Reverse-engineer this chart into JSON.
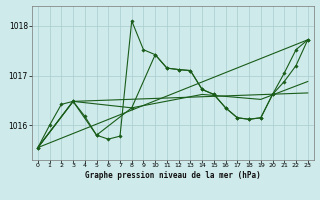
{
  "title": "Graphe pression niveau de la mer (hPa)",
  "background_color": "#ceeaea",
  "grid_color": "#aacccc",
  "line_color": "#1a5c1a",
  "xlim": [
    -0.5,
    23.5
  ],
  "ylim": [
    1015.3,
    1018.4
  ],
  "yticks": [
    1016,
    1017,
    1018
  ],
  "xticks": [
    0,
    1,
    2,
    3,
    4,
    5,
    6,
    7,
    8,
    9,
    10,
    11,
    12,
    13,
    14,
    15,
    16,
    17,
    18,
    19,
    20,
    21,
    22,
    23
  ],
  "series": [
    {
      "x": [
        0,
        1,
        2,
        3,
        4,
        5,
        6,
        7,
        8,
        9,
        10,
        11,
        12,
        13,
        14,
        15,
        16,
        17,
        18,
        19,
        20,
        21,
        22,
        23
      ],
      "y": [
        1015.55,
        1016.0,
        1016.42,
        1016.48,
        1016.18,
        1015.8,
        1015.72,
        1015.78,
        1018.1,
        1017.52,
        1017.42,
        1017.15,
        1017.12,
        1017.1,
        1016.72,
        1016.62,
        1016.35,
        1016.15,
        1016.12,
        1016.15,
        1016.62,
        1017.05,
        1017.52,
        1017.72
      ],
      "has_markers": true
    },
    {
      "x": [
        0,
        3,
        23
      ],
      "y": [
        1015.55,
        1016.48,
        1016.65
      ],
      "has_markers": false
    },
    {
      "x": [
        0,
        23
      ],
      "y": [
        1015.55,
        1017.72
      ],
      "has_markers": false
    },
    {
      "x": [
        0,
        3,
        8,
        14,
        19,
        23
      ],
      "y": [
        1015.55,
        1016.48,
        1016.35,
        1016.62,
        1016.52,
        1016.88
      ],
      "has_markers": false
    },
    {
      "x": [
        0,
        3,
        5,
        8,
        10,
        11,
        12,
        13,
        14,
        15,
        16,
        17,
        18,
        19,
        20,
        21,
        22,
        23
      ],
      "y": [
        1015.55,
        1016.48,
        1015.8,
        1016.35,
        1017.42,
        1017.15,
        1017.12,
        1017.1,
        1016.72,
        1016.62,
        1016.35,
        1016.15,
        1016.12,
        1016.15,
        1016.62,
        1016.88,
        1017.2,
        1017.72
      ],
      "has_markers": true
    }
  ]
}
